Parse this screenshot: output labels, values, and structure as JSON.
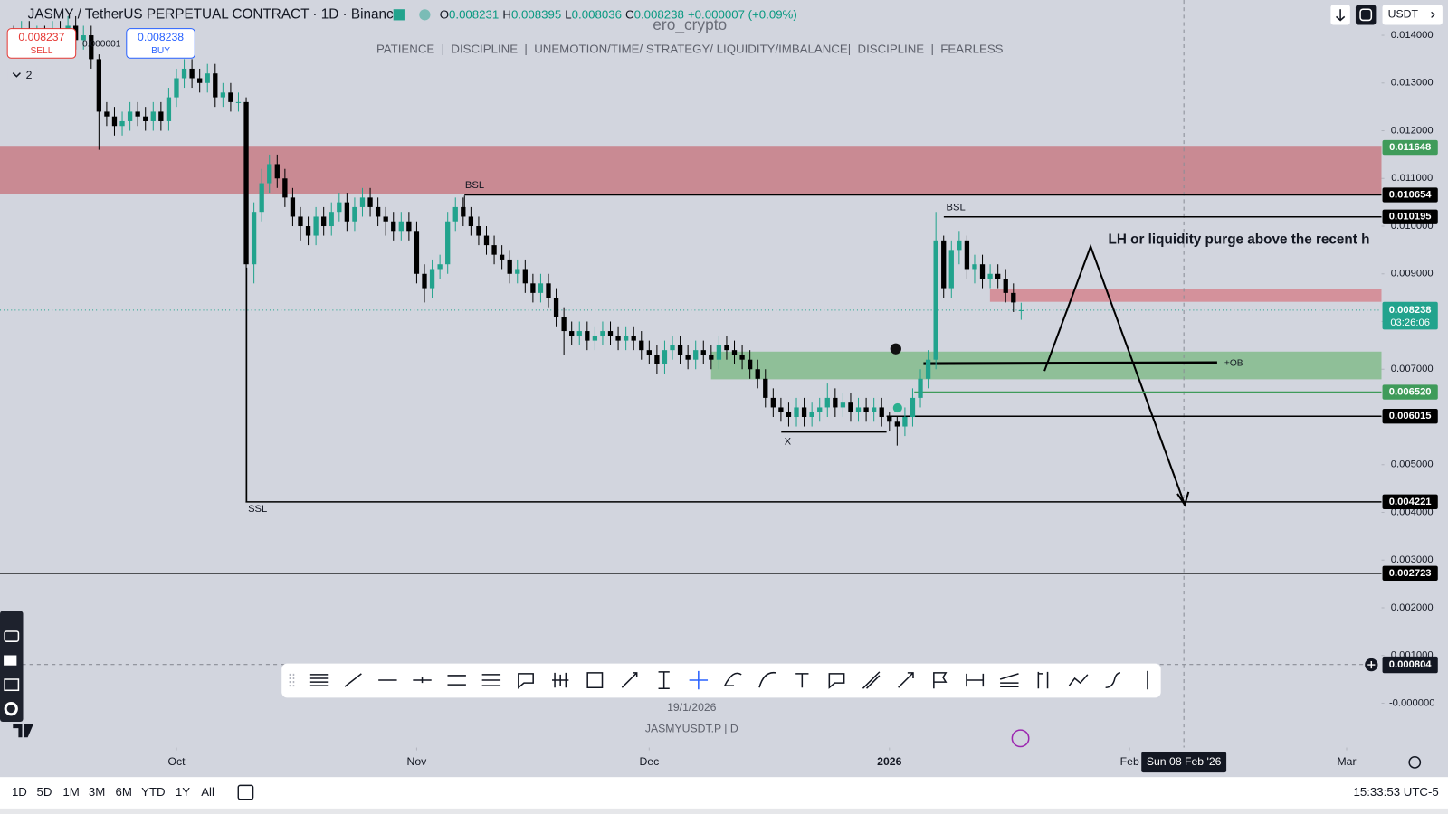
{
  "header": {
    "symbol": "JASMY / TetherUS PERPETUAL CONTRACT · 1D · Binance",
    "ohlc_letters": [
      "O",
      "H",
      "L",
      "C"
    ],
    "change": "+0.000007 (+0.09%)",
    "watermark": "ero_crypto",
    "tagline": "PATIENCE  |  DISCIPLINE  |  UNEMOTION/TIME/ STRATEGY/ LIQUIDITY/IMBALANCE|  DISCIPLINE  |  FEARLESS",
    "sell": {
      "price": 0.008237,
      "label": "SELL"
    },
    "buy": {
      "price": 0.008238,
      "label": "BUY"
    },
    "spread": 1e-06,
    "indicators": 2,
    "currency": "USDT"
  },
  "footer": {
    "date": "19/1/2026",
    "symbol": "JASMYUSDT.P | D",
    "timeframes": [
      "1D",
      "5D",
      "1M",
      "3M",
      "6M",
      "YTD",
      "1Y",
      "All"
    ],
    "clock": "15:33:53 UTC-5"
  },
  "chart_data": {
    "type": "candlestick",
    "up_color": "#22a38d",
    "down_color": "#000000",
    "grid": false,
    "open": [
      0.014,
      0.0139,
      0.0141,
      0.0138,
      0.014,
      0.0139,
      0.0141,
      0.014,
      0.0142,
      0.0139,
      0.014,
      0.0135,
      0.0124,
      0.0123,
      0.0121,
      0.0122,
      0.0124,
      0.0123,
      0.0122,
      0.0124,
      0.0122,
      0.0127,
      0.0131,
      0.0133,
      0.0131,
      0.013,
      0.0132,
      0.0127,
      0.0128,
      0.0126,
      0.0126,
      0.0092,
      0.0103,
      0.0109,
      0.0113,
      0.011,
      0.0106,
      0.0102,
      0.01,
      0.0098,
      0.0102,
      0.01,
      0.0103,
      0.0105,
      0.0101,
      0.0104,
      0.0106,
      0.0104,
      0.0102,
      0.0101,
      0.0099,
      0.0101,
      0.0099,
      0.009,
      0.0087,
      0.0091,
      0.0092,
      0.0101,
      0.0104,
      0.0102,
      0.01,
      0.0098,
      0.0096,
      0.0094,
      0.0093,
      0.009,
      0.0091,
      0.0088,
      0.0086,
      0.0088,
      0.0085,
      0.0081,
      0.0078,
      0.0077,
      0.0078,
      0.0076,
      0.0077,
      0.0078,
      0.0077,
      0.0076,
      0.0077,
      0.0076,
      0.0074,
      0.0073,
      0.0071,
      0.0074,
      0.0075,
      0.0073,
      0.0072,
      0.0074,
      0.0073,
      0.0072,
      0.0075,
      0.0074,
      0.0073,
      0.0072,
      0.007,
      0.0068,
      0.0064,
      0.0062,
      0.0061,
      0.006,
      0.0062,
      0.006,
      0.0061,
      0.0062,
      0.0064,
      0.0062,
      0.0063,
      0.0061,
      0.0062,
      0.0061,
      0.0062,
      0.006,
      0.0059,
      0.0058,
      0.006,
      0.0064,
      0.0068,
      0.0072,
      0.0097,
      0.0087,
      0.0095,
      0.0097,
      0.0091,
      0.0092,
      0.0089,
      0.009,
      0.0089,
      0.0086,
      0.008231
    ],
    "high": [
      0.0142,
      0.0143,
      0.0143,
      0.0142,
      0.0142,
      0.0143,
      0.0143,
      0.0144,
      0.0144,
      0.0142,
      0.0142,
      0.0136,
      0.0126,
      0.0125,
      0.0124,
      0.0126,
      0.0126,
      0.0125,
      0.0126,
      0.0126,
      0.0129,
      0.0133,
      0.0135,
      0.0135,
      0.0133,
      0.0134,
      0.0134,
      0.013,
      0.013,
      0.0128,
      0.0127,
      0.0105,
      0.0112,
      0.0115,
      0.0115,
      0.0112,
      0.0108,
      0.0104,
      0.0102,
      0.0104,
      0.0104,
      0.0105,
      0.0107,
      0.0107,
      0.0106,
      0.0108,
      0.0108,
      0.0106,
      0.0104,
      0.0103,
      0.0103,
      0.0103,
      0.0101,
      0.0092,
      0.0093,
      0.0094,
      0.0103,
      0.0106,
      0.0106,
      0.0104,
      0.0102,
      0.01,
      0.0098,
      0.0096,
      0.0095,
      0.0093,
      0.0093,
      0.009,
      0.009,
      0.009,
      0.0087,
      0.0083,
      0.008,
      0.008,
      0.008,
      0.0079,
      0.008,
      0.008,
      0.0079,
      0.0079,
      0.0079,
      0.0078,
      0.0076,
      0.0075,
      0.0076,
      0.0077,
      0.0077,
      0.0075,
      0.0076,
      0.0076,
      0.0075,
      0.0077,
      0.0077,
      0.0076,
      0.0075,
      0.0074,
      0.0072,
      0.007,
      0.0066,
      0.0064,
      0.0063,
      0.0064,
      0.0064,
      0.0063,
      0.0064,
      0.0067,
      0.0066,
      0.0065,
      0.0065,
      0.0064,
      0.0064,
      0.0064,
      0.0064,
      0.0061,
      0.006,
      0.0062,
      0.0066,
      0.007,
      0.0074,
      0.0103,
      0.0098,
      0.0097,
      0.0099,
      0.0098,
      0.0094,
      0.0094,
      0.0092,
      0.0092,
      0.0091,
      0.0088,
      0.008395
    ],
    "low": [
      0.0137,
      0.0137,
      0.0136,
      0.0136,
      0.0137,
      0.0137,
      0.0138,
      0.0138,
      0.0137,
      0.0137,
      0.0133,
      0.0116,
      0.0121,
      0.0119,
      0.0119,
      0.012,
      0.0121,
      0.012,
      0.012,
      0.012,
      0.012,
      0.0125,
      0.0129,
      0.0129,
      0.0128,
      0.0128,
      0.0125,
      0.0125,
      0.0124,
      0.0124,
      0.00422,
      0.0088,
      0.0101,
      0.0107,
      0.0108,
      0.0104,
      0.01,
      0.0097,
      0.0096,
      0.0096,
      0.0098,
      0.0098,
      0.0101,
      0.0099,
      0.0099,
      0.0102,
      0.0102,
      0.01,
      0.0098,
      0.0097,
      0.0097,
      0.0097,
      0.0088,
      0.0084,
      0.0085,
      0.0089,
      0.009,
      0.0099,
      0.01,
      0.0098,
      0.0096,
      0.0094,
      0.0092,
      0.0091,
      0.0088,
      0.0088,
      0.0086,
      0.0084,
      0.0084,
      0.0083,
      0.0079,
      0.0073,
      0.0075,
      0.0075,
      0.0074,
      0.0074,
      0.0075,
      0.0075,
      0.0074,
      0.0074,
      0.0074,
      0.0072,
      0.0071,
      0.0069,
      0.0069,
      0.0072,
      0.0071,
      0.007,
      0.007,
      0.0071,
      0.007,
      0.007,
      0.0072,
      0.0071,
      0.007,
      0.0068,
      0.0066,
      0.0062,
      0.006,
      0.0059,
      0.0058,
      0.0058,
      0.0058,
      0.0058,
      0.0059,
      0.006,
      0.006,
      0.006,
      0.0059,
      0.0059,
      0.0059,
      0.0059,
      0.0058,
      0.0057,
      0.0054,
      0.0056,
      0.0058,
      0.0062,
      0.0066,
      0.007,
      0.0085,
      0.0085,
      0.0092,
      0.0089,
      0.0088,
      0.0087,
      0.0087,
      0.0087,
      0.0084,
      0.0082,
      0.008036
    ],
    "close": [
      0.0139,
      0.0141,
      0.0138,
      0.014,
      0.0139,
      0.0141,
      0.014,
      0.0142,
      0.0139,
      0.014,
      0.0135,
      0.0124,
      0.0123,
      0.0121,
      0.0122,
      0.0124,
      0.0123,
      0.0122,
      0.0124,
      0.0122,
      0.0127,
      0.0131,
      0.0133,
      0.0131,
      0.013,
      0.0132,
      0.0127,
      0.0128,
      0.0126,
      0.0126,
      0.0092,
      0.0103,
      0.0109,
      0.0113,
      0.011,
      0.0106,
      0.0102,
      0.01,
      0.0098,
      0.0102,
      0.01,
      0.0103,
      0.0105,
      0.0101,
      0.0104,
      0.0106,
      0.0104,
      0.0102,
      0.0101,
      0.0099,
      0.0101,
      0.0099,
      0.009,
      0.0087,
      0.0091,
      0.0092,
      0.0101,
      0.0104,
      0.0102,
      0.01,
      0.0098,
      0.0096,
      0.0094,
      0.0093,
      0.009,
      0.0091,
      0.0088,
      0.0086,
      0.0088,
      0.0085,
      0.0081,
      0.0078,
      0.0077,
      0.0078,
      0.0076,
      0.0077,
      0.0078,
      0.0077,
      0.0076,
      0.0077,
      0.0076,
      0.0074,
      0.0073,
      0.0071,
      0.0074,
      0.0075,
      0.0073,
      0.0072,
      0.0074,
      0.0073,
      0.0072,
      0.0075,
      0.0074,
      0.0073,
      0.0072,
      0.007,
      0.0068,
      0.0064,
      0.0062,
      0.0061,
      0.006,
      0.0062,
      0.006,
      0.0061,
      0.0062,
      0.0064,
      0.0062,
      0.0063,
      0.0061,
      0.0062,
      0.0061,
      0.0062,
      0.006,
      0.0059,
      0.0058,
      0.006,
      0.0064,
      0.0068,
      0.0072,
      0.0097,
      0.0087,
      0.0095,
      0.0097,
      0.0091,
      0.0092,
      0.0089,
      0.009,
      0.0089,
      0.0086,
      0.0084,
      0.008238
    ],
    "countdown": "03:26:06",
    "xlim": [
      -1.77,
      176.5
    ],
    "xticks": [
      {
        "value": 21,
        "label": "Oct"
      },
      {
        "value": 52,
        "label": "Nov"
      },
      {
        "value": 82,
        "label": "Dec"
      },
      {
        "value": 113,
        "label": "2026"
      },
      {
        "value": 144,
        "label": "Feb"
      },
      {
        "value": 172,
        "label": "Mar"
      }
    ],
    "ylim": [
      -0.00093,
      0.01474
    ],
    "yticks": [
      {
        "value": 0.014,
        "label": "0.014000"
      },
      {
        "value": 0.013,
        "label": "0.013000"
      },
      {
        "value": 0.012,
        "label": "0.012000"
      },
      {
        "value": 0.011,
        "label": "0.011000"
      },
      {
        "value": 0.01,
        "label": "0.010000"
      },
      {
        "value": 0.009,
        "label": "0.009000"
      },
      {
        "value": 0.008,
        "label": "0.008000"
      },
      {
        "value": 0.007,
        "label": "0.007000"
      },
      {
        "value": 0.006,
        "label": "0.006000"
      },
      {
        "value": 0.005,
        "label": "0.005000"
      },
      {
        "value": 0.004,
        "label": "0.004000"
      },
      {
        "value": 0.003,
        "label": "0.003000"
      },
      {
        "value": 0.002,
        "label": "0.002000"
      },
      {
        "value": 0.001,
        "label": "0.001000"
      },
      {
        "value": 0,
        "label": "-0.000000"
      }
    ],
    "levels": [
      {
        "value": 0.011648,
        "color": "#3f9b5a"
      },
      {
        "value": 0.010654,
        "color": "#000000"
      },
      {
        "value": 0.010195,
        "color": "#000000"
      },
      {
        "value": 0.00652,
        "label": "0.006520",
        "color": "#3f9b5a"
      },
      {
        "value": 0.006015,
        "color": "#000000"
      },
      {
        "value": 0.004221,
        "color": "#000000"
      },
      {
        "value": 0.002723,
        "color": "#000000"
      }
    ],
    "crosshair": {
      "price": 0.000804,
      "date": "Sun 08 Feb '26"
    },
    "annotations": [
      "BSL",
      "BSL",
      "SSL",
      "X",
      "+OB",
      "LH or liquidity purge above the recent h"
    ]
  }
}
